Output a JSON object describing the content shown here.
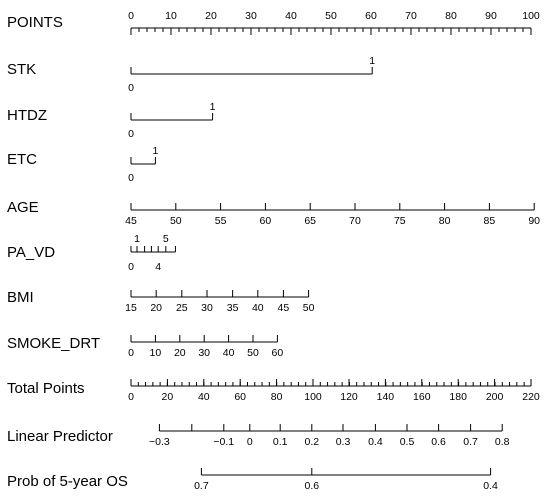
{
  "chart_data": {
    "type": "nomogram",
    "rows": [
      {
        "key": "points",
        "label": "POINTS",
        "kind": "axis",
        "labels_above": true,
        "points_range": [
          0,
          100
        ],
        "ticks": [
          {
            "v": "0",
            "p": 0
          },
          {
            "v": "10",
            "p": 10
          },
          {
            "v": "20",
            "p": 20
          },
          {
            "v": "30",
            "p": 30
          },
          {
            "v": "40",
            "p": 40
          },
          {
            "v": "50",
            "p": 50
          },
          {
            "v": "60",
            "p": 60
          },
          {
            "v": "70",
            "p": 70
          },
          {
            "v": "80",
            "p": 80
          },
          {
            "v": "90",
            "p": 90
          },
          {
            "v": "100",
            "p": 100
          }
        ],
        "minor_step": 2
      },
      {
        "key": "stk",
        "label": "STK",
        "kind": "binary",
        "levels": [
          {
            "v": "0",
            "p": 0
          },
          {
            "v": "1",
            "p": 60.3
          }
        ]
      },
      {
        "key": "htdz",
        "label": "HTDZ",
        "kind": "binary",
        "levels": [
          {
            "v": "0",
            "p": 0
          },
          {
            "v": "1",
            "p": 20.4
          }
        ]
      },
      {
        "key": "etc",
        "label": "ETC",
        "kind": "binary",
        "levels": [
          {
            "v": "0",
            "p": 0
          },
          {
            "v": "1",
            "p": 6.1
          }
        ]
      },
      {
        "key": "age",
        "label": "AGE",
        "kind": "axis",
        "labels_above": false,
        "ticks": [
          {
            "v": "45",
            "p": 0
          },
          {
            "v": "50",
            "p": 11.2
          },
          {
            "v": "55",
            "p": 22.4
          },
          {
            "v": "60",
            "p": 33.6
          },
          {
            "v": "65",
            "p": 44.8
          },
          {
            "v": "70",
            "p": 56.0
          },
          {
            "v": "75",
            "p": 67.2
          },
          {
            "v": "80",
            "p": 78.4
          },
          {
            "v": "85",
            "p": 89.6
          },
          {
            "v": "90",
            "p": 100.8
          }
        ]
      },
      {
        "key": "pa_vd",
        "label": "PA_VD",
        "kind": "categorical",
        "above": [
          {
            "v": "1",
            "p": 1.5
          },
          {
            "v": "5",
            "p": 8.7
          }
        ],
        "below": [
          {
            "v": "0",
            "p": 0
          },
          {
            "v": "4",
            "p": 6.8
          }
        ],
        "marks": [
          0,
          1.5,
          3.4,
          5.1,
          6.8,
          8.7,
          11.1
        ]
      },
      {
        "key": "bmi",
        "label": "BMI",
        "kind": "axis",
        "labels_above": false,
        "ticks": [
          {
            "v": "15",
            "p": 0
          },
          {
            "v": "20",
            "p": 6.3
          },
          {
            "v": "25",
            "p": 12.7
          },
          {
            "v": "30",
            "p": 19.0
          },
          {
            "v": "35",
            "p": 25.4
          },
          {
            "v": "40",
            "p": 31.7
          },
          {
            "v": "45",
            "p": 38.1
          },
          {
            "v": "50",
            "p": 44.4
          }
        ]
      },
      {
        "key": "smoke_drt",
        "label": "SMOKE_DRT",
        "kind": "axis",
        "labels_above": false,
        "ticks": [
          {
            "v": "0",
            "p": 0
          },
          {
            "v": "10",
            "p": 6.1
          },
          {
            "v": "20",
            "p": 12.2
          },
          {
            "v": "30",
            "p": 18.3
          },
          {
            "v": "40",
            "p": 24.4
          },
          {
            "v": "50",
            "p": 30.5
          },
          {
            "v": "60",
            "p": 36.6
          }
        ]
      },
      {
        "key": "total_points",
        "label": "Total Points",
        "kind": "axis",
        "labels_above": false,
        "ticks": [
          {
            "v": "0",
            "p": 0
          },
          {
            "v": "20",
            "p": 9.1
          },
          {
            "v": "40",
            "p": 18.2
          },
          {
            "v": "60",
            "p": 27.3
          },
          {
            "v": "80",
            "p": 36.4
          },
          {
            "v": "100",
            "p": 45.5
          },
          {
            "v": "120",
            "p": 54.5
          },
          {
            "v": "140",
            "p": 63.6
          },
          {
            "v": "160",
            "p": 72.7
          },
          {
            "v": "180",
            "p": 81.8
          },
          {
            "v": "200",
            "p": 90.9
          },
          {
            "v": "220",
            "p": 100
          }
        ],
        "minor_step": 1.82
      },
      {
        "key": "linear_predictor",
        "label": "Linear Predictor",
        "kind": "axis",
        "labels_above": false,
        "ticks": [
          {
            "v": "−0.3",
            "p": 7.1
          },
          {
            "v": "−0.1",
            "p": 23.2
          },
          {
            "v": "0",
            "p": 29.7
          },
          {
            "v": "0.1",
            "p": 37.3
          },
          {
            "v": "0.2",
            "p": 45.2
          },
          {
            "v": "0.3",
            "p": 53.0
          },
          {
            "v": "0.4",
            "p": 61.1
          },
          {
            "v": "0.5",
            "p": 69.0
          },
          {
            "v": "0.6",
            "p": 76.9
          },
          {
            "v": "0.7",
            "p": 84.9
          },
          {
            "v": "0.8",
            "p": 92.8
          }
        ],
        "extra_marks": [
          15.2
        ]
      },
      {
        "key": "prob_5yr_os",
        "label": "Prob of 5-year  OS",
        "kind": "axis",
        "labels_above": false,
        "ticks": [
          {
            "v": "0.7",
            "p": 17.6
          },
          {
            "v": "0.6",
            "p": 45.2
          },
          {
            "v": "0.4",
            "p": 89.9
          }
        ]
      }
    ]
  }
}
